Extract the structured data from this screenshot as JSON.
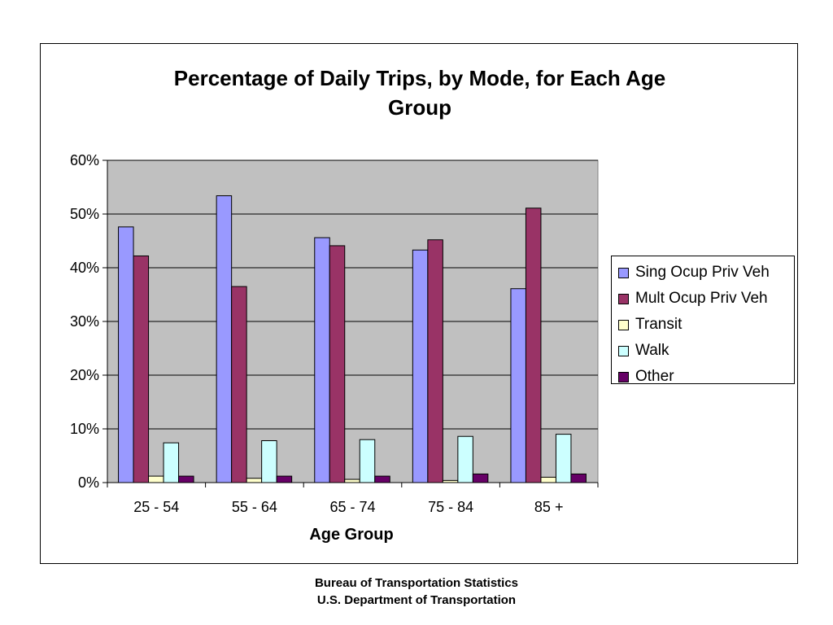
{
  "chart_data": {
    "type": "bar",
    "title_lines": [
      "Percentage of Daily Trips, by Mode, for Each Age",
      "Group"
    ],
    "xlabel": "Age Group",
    "ylabel": "",
    "categories": [
      "25 - 54",
      "55 - 64",
      "65 - 74",
      "75 - 84",
      "85 +"
    ],
    "ylim": [
      0,
      60
    ],
    "yticks": [
      "0%",
      "10%",
      "20%",
      "30%",
      "40%",
      "50%",
      "60%"
    ],
    "grid": true,
    "legend_position": "right",
    "series": [
      {
        "name": "Sing Ocup Priv Veh",
        "color": "#9999FF",
        "values": [
          47.6,
          53.4,
          45.6,
          43.3,
          36.1
        ]
      },
      {
        "name": "Mult Ocup Priv Veh",
        "color": "#993366",
        "values": [
          42.2,
          36.5,
          44.1,
          45.2,
          51.1
        ]
      },
      {
        "name": "Transit",
        "color": "#FFFFCC",
        "values": [
          1.2,
          0.8,
          0.6,
          0.4,
          1.0
        ]
      },
      {
        "name": "Walk",
        "color": "#CCFFFF",
        "values": [
          7.4,
          7.8,
          8.0,
          8.6,
          9.0
        ]
      },
      {
        "name": "Other",
        "color": "#660066",
        "values": [
          1.2,
          1.2,
          1.2,
          1.6,
          1.6
        ]
      }
    ],
    "plot_background": "#C0C0C0"
  },
  "footer": {
    "line1": "Bureau of Transportation Statistics",
    "line2": "U.S. Department of Transportation"
  }
}
